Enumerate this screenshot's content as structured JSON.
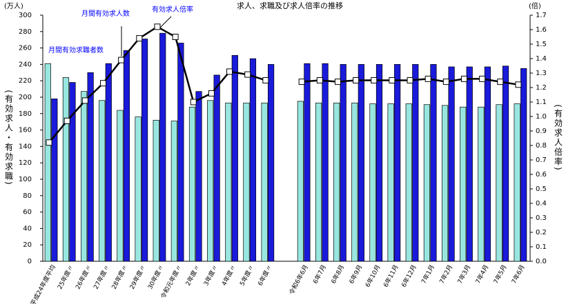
{
  "chart_data": {
    "type": "bar",
    "title": "求人、求職及び求人倍率の推移",
    "ylabel_unit": "(万人)",
    "y2label_unit": "(倍)",
    "ylabel": "(有効求人・有効求職)",
    "y2label": "(有効求人倍率)",
    "categories": [
      "平成24年度平均",
      "25年度〃",
      "26年度〃",
      "27年度〃",
      "28年度〃",
      "29年度〃",
      "30年度〃",
      "令和元年度〃",
      "2年度〃",
      "3年度〃",
      "4年度〃",
      "5年度〃",
      "6年度〃",
      null,
      "令和6年6月",
      "6年7月",
      "6年8月",
      "6年9月",
      "6年10月",
      "6年11月",
      "6年12月",
      "7年1月",
      "7年2月",
      "7年3月",
      "7年4月",
      "7年5月",
      "7年6月"
    ],
    "series": [
      {
        "name": "月間有効求職者数",
        "color": "#99e6e0",
        "values": [
          241,
          224,
          207,
          196,
          184,
          176,
          172,
          171,
          188,
          196,
          193,
          193,
          193,
          null,
          195,
          193,
          193,
          193,
          192,
          192,
          192,
          191,
          190,
          188,
          188,
          191,
          192
        ]
      },
      {
        "name": "月間有効求人数",
        "color": "#1a1adb",
        "values": [
          198,
          218,
          230,
          241,
          257,
          271,
          278,
          266,
          207,
          227,
          251,
          247,
          240,
          null,
          241,
          241,
          240,
          240,
          240,
          240,
          240,
          240,
          237,
          237,
          237,
          238,
          235
        ]
      },
      {
        "name": "有効求人倍率",
        "type": "line",
        "axis": "y2",
        "color": "#000000",
        "values": [
          0.82,
          0.97,
          1.11,
          1.23,
          1.39,
          1.54,
          1.62,
          1.55,
          1.1,
          1.16,
          1.31,
          1.29,
          1.25,
          null,
          1.24,
          1.25,
          1.24,
          1.25,
          1.25,
          1.25,
          1.25,
          1.26,
          1.24,
          1.26,
          1.26,
          1.24,
          1.22
        ]
      }
    ],
    "ylim": [
      0,
      300
    ],
    "yticks": [
      0,
      20,
      40,
      60,
      80,
      100,
      120,
      140,
      160,
      180,
      200,
      220,
      240,
      260,
      280,
      300
    ],
    "y2lim": [
      0,
      1.7
    ],
    "y2ticks": [
      {
        "value": 0,
        "label": "0.0"
      },
      0.1,
      0.2,
      0.3,
      0.4,
      0.5,
      0.6,
      0.7,
      0.8,
      0.9,
      {
        "value": 1,
        "label": "1.0"
      },
      1.1,
      1.2,
      1.3,
      1.4,
      1.5,
      1.6,
      1.7
    ],
    "grid": false
  }
}
